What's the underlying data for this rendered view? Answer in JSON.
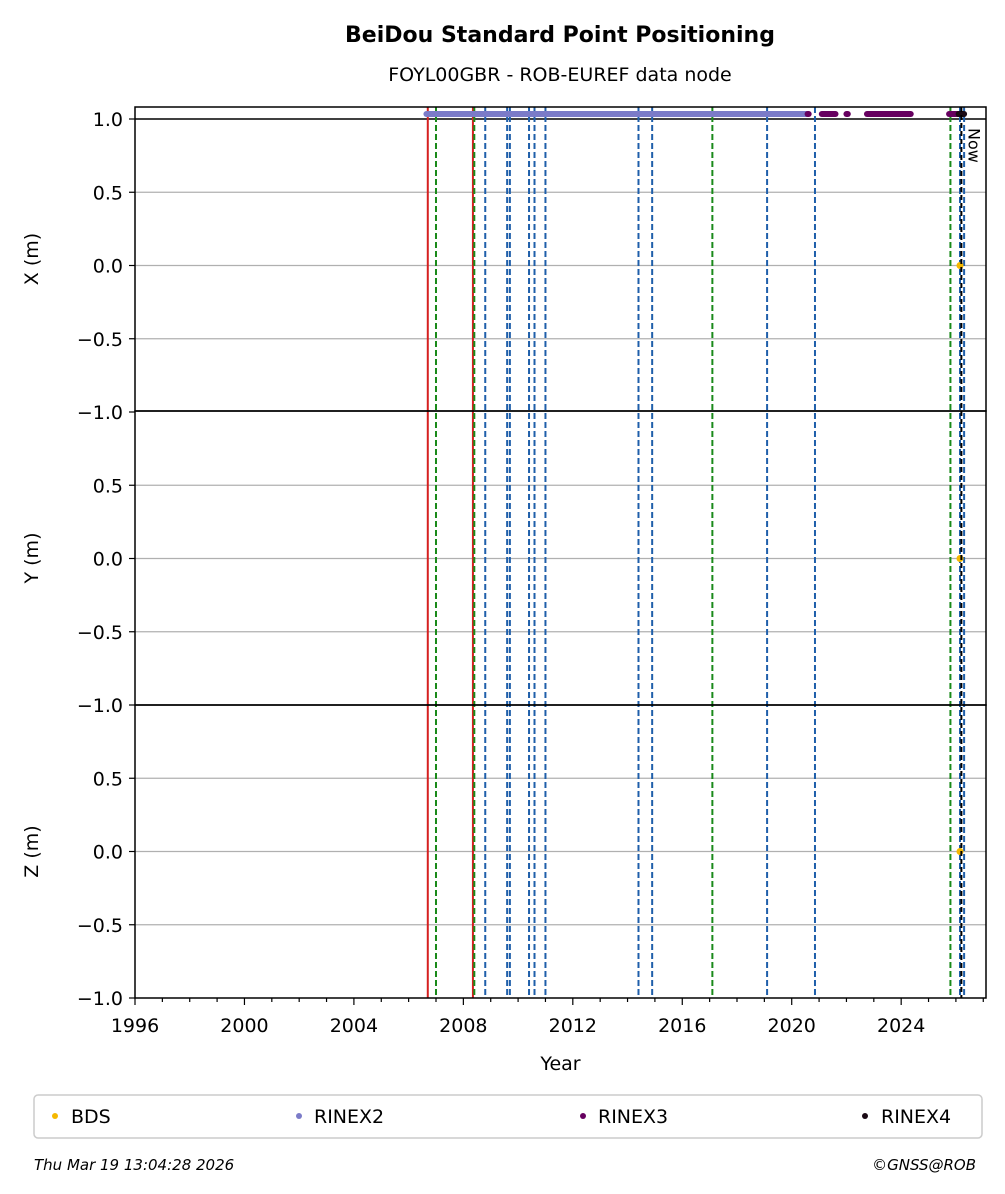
{
  "title": "BeiDou Standard Point Positioning",
  "subtitle": "FOYL00GBR - ROB-EUREF data node",
  "footer": {
    "timestamp": "Thu Mar 19 13:04:28 2026",
    "credit": "©GNSS@ROB"
  },
  "now_label": "Now",
  "colors": {
    "BDS": "#f5b800",
    "RINEX2": "#7b7bc8",
    "RINEX3": "#66005f",
    "RINEX4": "#1a0a14",
    "equipment_change": "#1f5faa",
    "antenna_change": "#1a8a1a",
    "red_event": "#d62020",
    "grid": "#b0b0b0"
  },
  "chart_data": {
    "type": "scatter",
    "xlabel": "Year",
    "xlim": [
      1996,
      2027.1
    ],
    "xticks": [
      "1996",
      "2000",
      "2004",
      "2008",
      "2012",
      "2016",
      "2020",
      "2024"
    ],
    "legend": {
      "placement": "bottom",
      "entries": [
        "BDS",
        "RINEX2",
        "RINEX3",
        "RINEX4"
      ]
    },
    "panels": [
      {
        "ylabel": "X (m)",
        "ylim": [
          -1.0,
          1.08
        ],
        "yticks": [
          "1.0",
          "0.5",
          "0.0",
          "−0.5",
          "−1.0"
        ]
      },
      {
        "ylabel": "Y (m)",
        "ylim": [
          -1.0,
          1.0
        ],
        "yticks": [
          "0.5",
          "0.0",
          "−0.5",
          "−1.0"
        ]
      },
      {
        "ylabel": "Z (m)",
        "ylim": [
          -1.0,
          1.0
        ],
        "yticks": [
          "0.5",
          "0.0",
          "−0.5",
          "−1.0"
        ]
      }
    ],
    "series": [
      {
        "name": "BDS",
        "x": [
          2026.15
        ],
        "y": [
          0.0
        ]
      },
      {
        "name": "RINEX2",
        "segments": [
          [
            2006.65,
            2020.55
          ]
        ]
      },
      {
        "name": "RINEX3",
        "segments": [
          [
            2020.58,
            2020.62
          ],
          [
            2021.1,
            2021.6
          ],
          [
            2022.0,
            2022.05
          ],
          [
            2022.75,
            2024.35
          ],
          [
            2025.75,
            2026.1
          ]
        ]
      },
      {
        "name": "RINEX4",
        "segments": [
          [
            2026.1,
            2026.3
          ]
        ]
      }
    ],
    "vertical_lines": {
      "equipment_change": [
        2008.8,
        2009.6,
        2009.7,
        2010.4,
        2010.6,
        2011.0,
        2014.4,
        2014.9,
        2019.1,
        2020.85,
        2026.15,
        2026.3
      ],
      "antenna_change": [
        2007.0,
        2008.4,
        2017.1,
        2025.8
      ],
      "red_event": [
        2006.7,
        2008.35
      ]
    },
    "now": 2026.2
  }
}
